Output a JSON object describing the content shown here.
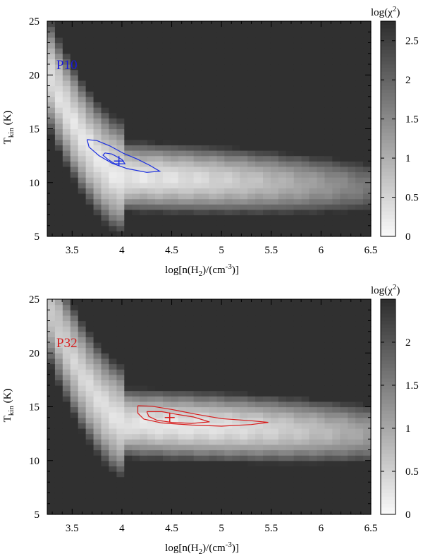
{
  "chart_data": [
    {
      "type": "heatmap",
      "panel_label": "P10",
      "label_color": "#1a1adb",
      "contour_color": "#1a2ee0",
      "xlabel_main": "log[n(H",
      "xlabel_sub": "2",
      "xlabel_mid": ")/(cm",
      "xlabel_sup": "-3",
      "xlabel_end": ")]",
      "ylabel_main": "T",
      "ylabel_sub": "kin",
      "ylabel_end": " (K)",
      "xlim": [
        3.25,
        6.5
      ],
      "ylim": [
        5,
        25
      ],
      "x_ticks": [
        "3.5",
        "4",
        "4.5",
        "5",
        "5.5",
        "6",
        "6.5"
      ],
      "y_ticks": [
        "5",
        "10",
        "15",
        "20",
        "25"
      ],
      "colorbar_title_main": "log(χ",
      "colorbar_title_sup": "2",
      "colorbar_title_end": ")",
      "colorbar_range": [
        0,
        2.75
      ],
      "colorbar_ticks": [
        "0",
        "0.5",
        "1",
        "1.5",
        "2",
        "2.5"
      ],
      "best_fit": {
        "x": 3.97,
        "y": 12.0
      },
      "valley": {
        "x_knee": 4.0,
        "y_floor": 10.6,
        "y_min_at": 3.95
      },
      "contours": [
        [
          [
            3.65,
            14.0
          ],
          [
            3.75,
            13.9
          ],
          [
            3.88,
            13.4
          ],
          [
            4.02,
            12.7
          ],
          [
            4.15,
            12.2
          ],
          [
            4.28,
            11.6
          ],
          [
            4.38,
            11.05
          ],
          [
            4.25,
            10.95
          ],
          [
            4.05,
            11.3
          ],
          [
            3.9,
            11.8
          ],
          [
            3.77,
            12.5
          ],
          [
            3.67,
            13.3
          ],
          [
            3.65,
            14.0
          ]
        ],
        [
          [
            3.83,
            12.75
          ],
          [
            3.9,
            12.65
          ],
          [
            4.0,
            12.15
          ],
          [
            4.03,
            11.75
          ],
          [
            3.93,
            11.75
          ],
          [
            3.86,
            12.15
          ],
          [
            3.81,
            12.55
          ],
          [
            3.83,
            12.75
          ]
        ]
      ]
    },
    {
      "type": "heatmap",
      "panel_label": "P32",
      "label_color": "#d81c1c",
      "contour_color": "#d81c1c",
      "xlabel_main": "log[n(H",
      "xlabel_sub": "2",
      "xlabel_mid": ")/(cm",
      "xlabel_sup": "-3",
      "xlabel_end": ")]",
      "ylabel_main": "T",
      "ylabel_sub": "kin",
      "ylabel_end": " (K)",
      "xlim": [
        3.25,
        6.5
      ],
      "ylim": [
        5,
        25
      ],
      "x_ticks": [
        "3.5",
        "4",
        "4.5",
        "5",
        "5.5",
        "6",
        "6.5"
      ],
      "y_ticks": [
        "5",
        "10",
        "15",
        "20",
        "25"
      ],
      "colorbar_title_main": "log(χ",
      "colorbar_title_sup": "2",
      "colorbar_title_end": ")",
      "colorbar_range": [
        0,
        2.5
      ],
      "colorbar_ticks": [
        "0",
        "0.5",
        "1",
        "1.5",
        "2"
      ],
      "best_fit": {
        "x": 4.48,
        "y": 14.0
      },
      "valley": {
        "x_knee": 4.05,
        "y_floor": 13.5,
        "y_min_at": 4.5
      },
      "contours": [
        [
          [
            4.16,
            15.1
          ],
          [
            4.3,
            15.05
          ],
          [
            4.5,
            14.75
          ],
          [
            4.75,
            14.3
          ],
          [
            5.0,
            13.9
          ],
          [
            5.3,
            13.7
          ],
          [
            5.47,
            13.55
          ],
          [
            5.3,
            13.35
          ],
          [
            5.0,
            13.2
          ],
          [
            4.7,
            13.3
          ],
          [
            4.4,
            13.5
          ],
          [
            4.22,
            13.85
          ],
          [
            4.16,
            14.4
          ],
          [
            4.16,
            15.1
          ]
        ],
        [
          [
            4.25,
            14.55
          ],
          [
            4.4,
            14.55
          ],
          [
            4.55,
            14.3
          ],
          [
            4.72,
            14.05
          ],
          [
            4.88,
            13.6
          ],
          [
            4.7,
            13.45
          ],
          [
            4.5,
            13.55
          ],
          [
            4.35,
            13.75
          ],
          [
            4.27,
            14.1
          ],
          [
            4.25,
            14.55
          ]
        ]
      ]
    }
  ]
}
